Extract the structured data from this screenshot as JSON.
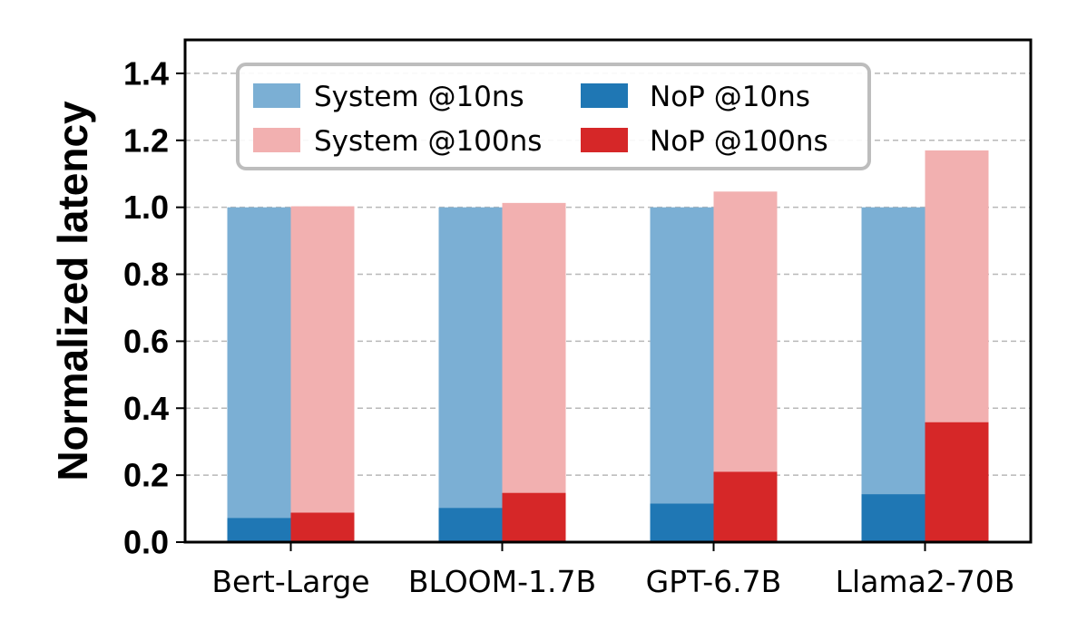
{
  "chart_data": {
    "type": "bar",
    "title": "",
    "xlabel": "",
    "ylabel": "Normalized latency",
    "ylim": [
      0,
      1.5
    ],
    "yticks": [
      "0.0",
      "0.2",
      "0.4",
      "0.6",
      "0.8",
      "1.0",
      "1.2",
      "1.4"
    ],
    "grid": true,
    "legend_position": "top-left",
    "categories": [
      "Bert-Large",
      "BLOOM-1.7B",
      "GPT-6.7B",
      "Llama2-70B"
    ],
    "series": [
      {
        "name": "System @10ns",
        "color": "#7bafd4",
        "group": "10ns",
        "layer": "total",
        "values": [
          1.0,
          1.0,
          1.0,
          1.0
        ]
      },
      {
        "name": "System @100ns",
        "color": "#f2b0b0",
        "group": "100ns",
        "layer": "total",
        "values": [
          1.003,
          1.013,
          1.047,
          1.17
        ]
      },
      {
        "name": "NoP @10ns",
        "color": "#1f77b4",
        "group": "10ns",
        "layer": "part",
        "values": [
          0.072,
          0.102,
          0.115,
          0.143
        ]
      },
      {
        "name": "NoP @100ns",
        "color": "#d62728",
        "group": "100ns",
        "layer": "part",
        "values": [
          0.088,
          0.147,
          0.21,
          0.358
        ]
      }
    ]
  }
}
